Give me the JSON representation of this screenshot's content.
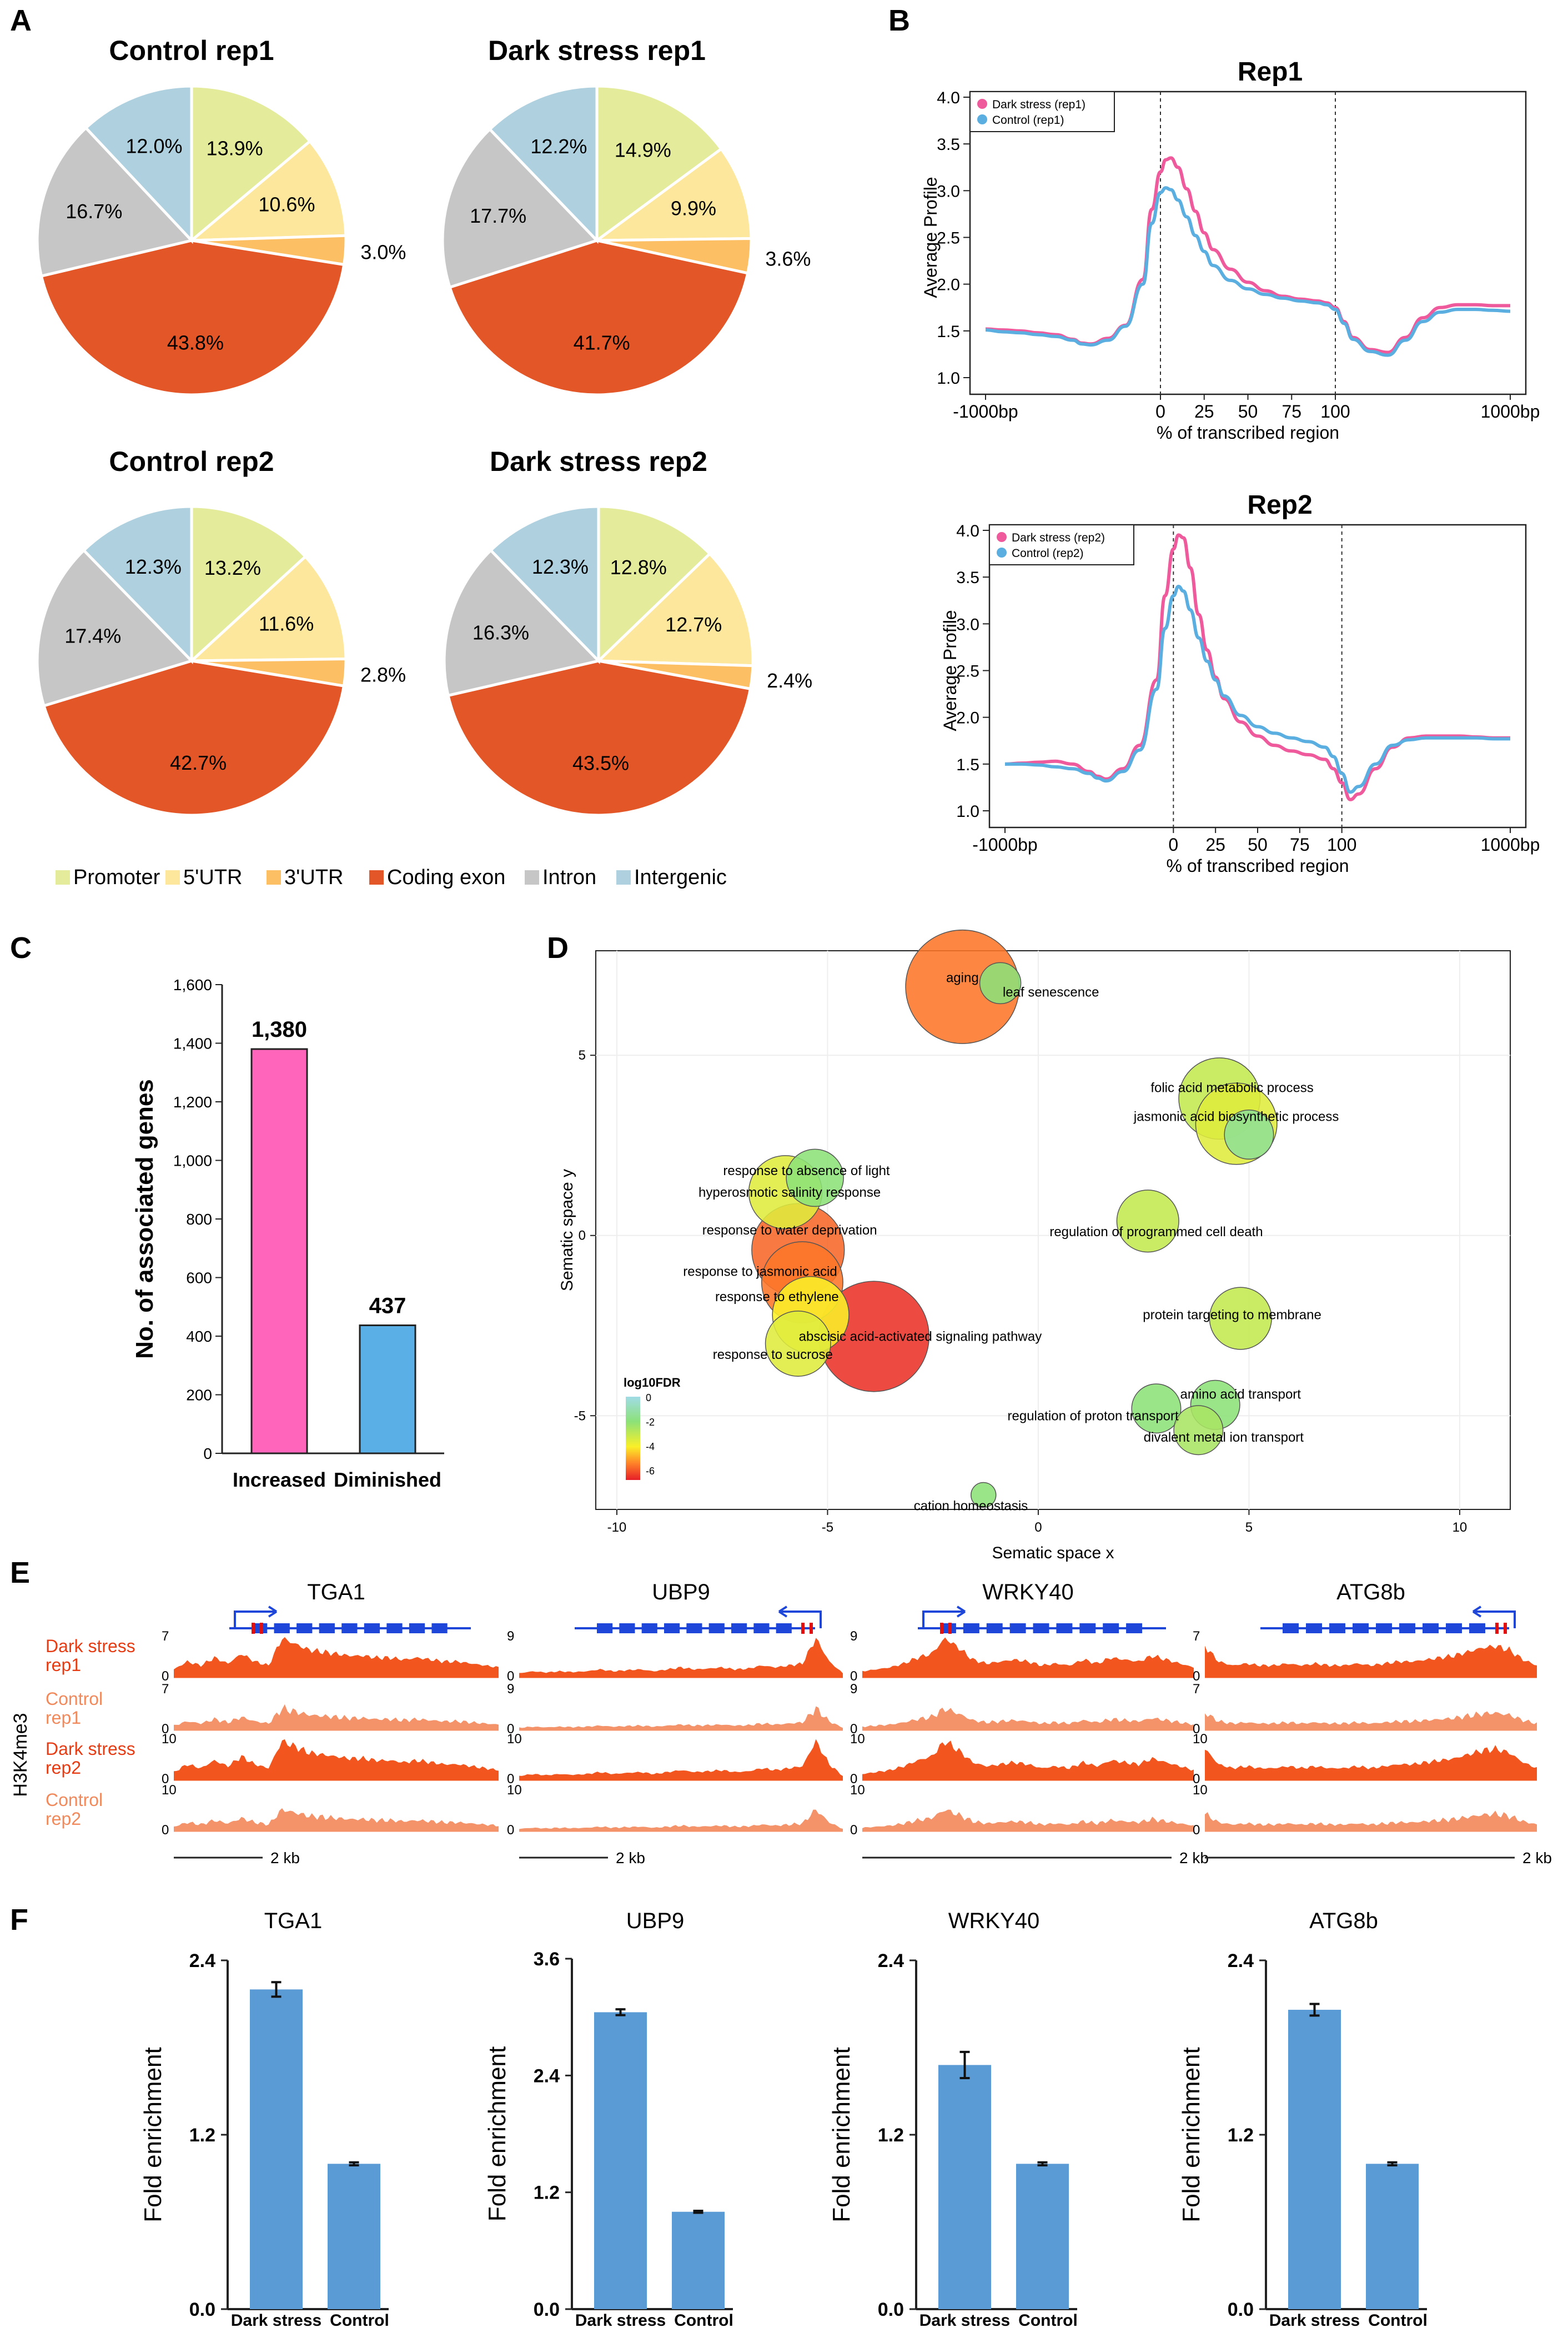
{
  "colors": {
    "promoter": "#e4ec9c",
    "utr5": "#fde79d",
    "utr3": "#fcbf63",
    "coding": "#e35627",
    "intron": "#c6c6c6",
    "intergenic": "#afd0df",
    "dark_line": "#ee5a9c",
    "control_line": "#5aaee0",
    "bar_increased": "#ff66bb",
    "bar_diminished": "#5aafe6",
    "track_dark": "#f2561e",
    "track_control": "#f4926a",
    "gene_blue": "#1e46d9",
    "label_dark": "#e63c14",
    "label_control": "#f08a5c",
    "bar_f": "#5b9bd5"
  },
  "panels": {
    "A": "A",
    "B": "B",
    "C": "C",
    "D": "D",
    "E": "E",
    "F": "F"
  },
  "chart_data": [
    {
      "id": "A1",
      "type": "pie",
      "title": "Control rep1",
      "labels": [
        "Promoter",
        "5'UTR",
        "3'UTR",
        "Coding exon",
        "Intron",
        "Intergenic"
      ],
      "values": [
        13.9,
        10.6,
        3.0,
        43.8,
        16.7,
        12.0
      ],
      "value_labels": [
        "13.9%",
        "10.6%",
        "3.0%",
        "43.8%",
        "16.7%",
        "12.0%"
      ]
    },
    {
      "id": "A2",
      "type": "pie",
      "title": "Dark stress rep1",
      "labels": [
        "Promoter",
        "5'UTR",
        "3'UTR",
        "Coding exon",
        "Intron",
        "Intergenic"
      ],
      "values": [
        14.9,
        9.9,
        3.6,
        41.7,
        17.7,
        12.2
      ],
      "value_labels": [
        "14.9%",
        "9.9%",
        "3.6%",
        "41.7%",
        "17.7%",
        "12.2%"
      ]
    },
    {
      "id": "A3",
      "type": "pie",
      "title": "Control rep2",
      "labels": [
        "Promoter",
        "5'UTR",
        "3'UTR",
        "Coding exon",
        "Intron",
        "Intergenic"
      ],
      "values": [
        13.2,
        11.6,
        2.8,
        42.7,
        17.4,
        12.3
      ],
      "value_labels": [
        "13.2%",
        "11.6%",
        "2.8%",
        "42.7%",
        "17.4%",
        "12.3%"
      ]
    },
    {
      "id": "A4",
      "type": "pie",
      "title": "Dark stress rep2",
      "labels": [
        "Promoter",
        "5'UTR",
        "3'UTR",
        "Coding exon",
        "Intron",
        "Intergenic"
      ],
      "values": [
        12.8,
        12.7,
        2.4,
        43.5,
        16.3,
        12.3
      ],
      "value_labels": [
        "12.8%",
        "12.7%",
        "2.4%",
        "43.5%",
        "16.3%",
        "12.3%"
      ],
      "legend": [
        "Promoter",
        "5'UTR",
        "3'UTR",
        "Coding exon",
        "Intron",
        "Intergenic"
      ]
    },
    {
      "id": "B1",
      "type": "line",
      "title": "Rep1",
      "xlabel": "% of transcribed region",
      "ylabel": "Average Profile",
      "x_ticks": [
        "-1000bp",
        "0",
        "25",
        "50",
        "75",
        "100",
        "1000bp"
      ],
      "y_ticks": [
        "1.0",
        "1.5",
        "2.0",
        "2.5",
        "3.0",
        "3.5",
        "4.0"
      ],
      "ylim": [
        1.0,
        4.0
      ],
      "series": [
        {
          "name": "Dark stress (rep1)",
          "x": [
            -100,
            -90,
            -80,
            -70,
            -60,
            -50,
            -45,
            -40,
            -30,
            -20,
            -10,
            -5,
            0,
            3,
            6,
            10,
            15,
            20,
            25,
            30,
            40,
            50,
            60,
            70,
            80,
            90,
            95,
            100,
            105,
            110,
            120,
            130,
            140,
            150,
            160,
            170,
            180,
            190,
            200
          ],
          "y": [
            1.52,
            1.51,
            1.5,
            1.48,
            1.46,
            1.41,
            1.37,
            1.36,
            1.42,
            1.56,
            2.05,
            2.8,
            3.2,
            3.33,
            3.35,
            3.25,
            3.02,
            2.78,
            2.55,
            2.37,
            2.16,
            2.02,
            1.93,
            1.87,
            1.84,
            1.82,
            1.8,
            1.75,
            1.6,
            1.43,
            1.3,
            1.27,
            1.43,
            1.64,
            1.75,
            1.78,
            1.78,
            1.77,
            1.77
          ]
        },
        {
          "name": "Control (rep1)",
          "x": [
            -100,
            -90,
            -80,
            -70,
            -60,
            -50,
            -45,
            -40,
            -30,
            -20,
            -10,
            -5,
            0,
            3,
            6,
            10,
            15,
            20,
            25,
            30,
            40,
            50,
            60,
            70,
            80,
            90,
            95,
            100,
            105,
            110,
            120,
            130,
            140,
            150,
            160,
            170,
            180,
            190,
            200
          ],
          "y": [
            1.51,
            1.49,
            1.48,
            1.46,
            1.44,
            1.4,
            1.36,
            1.35,
            1.4,
            1.55,
            2.0,
            2.65,
            2.98,
            3.03,
            3.01,
            2.9,
            2.72,
            2.52,
            2.35,
            2.2,
            2.04,
            1.95,
            1.89,
            1.85,
            1.82,
            1.8,
            1.78,
            1.73,
            1.58,
            1.41,
            1.28,
            1.24,
            1.4,
            1.6,
            1.7,
            1.73,
            1.73,
            1.72,
            1.71
          ]
        }
      ]
    },
    {
      "id": "B2",
      "type": "line",
      "title": "Rep2",
      "xlabel": "% of transcribed region",
      "ylabel": "Average Profile",
      "x_ticks": [
        "-1000bp",
        "0",
        "25",
        "50",
        "75",
        "100",
        "1000bp"
      ],
      "y_ticks": [
        "1.0",
        "1.5",
        "2.0",
        "2.5",
        "3.0",
        "3.5",
        "4.0"
      ],
      "ylim": [
        1.0,
        4.0
      ],
      "series": [
        {
          "name": "Dark stress (rep2)",
          "x": [
            -100,
            -90,
            -80,
            -70,
            -60,
            -50,
            -45,
            -40,
            -30,
            -20,
            -10,
            -5,
            0,
            3,
            6,
            10,
            15,
            20,
            25,
            30,
            40,
            50,
            60,
            70,
            80,
            90,
            95,
            100,
            105,
            110,
            120,
            130,
            140,
            150,
            160,
            170,
            180,
            190,
            200
          ],
          "y": [
            1.5,
            1.51,
            1.52,
            1.53,
            1.5,
            1.42,
            1.37,
            1.34,
            1.45,
            1.7,
            2.4,
            3.3,
            3.8,
            3.95,
            3.92,
            3.6,
            3.1,
            2.72,
            2.43,
            2.2,
            1.95,
            1.8,
            1.7,
            1.64,
            1.6,
            1.55,
            1.45,
            1.3,
            1.12,
            1.18,
            1.45,
            1.68,
            1.78,
            1.8,
            1.8,
            1.8,
            1.79,
            1.78,
            1.78
          ]
        },
        {
          "name": "Control (rep2)",
          "x": [
            -100,
            -90,
            -80,
            -70,
            -60,
            -50,
            -45,
            -40,
            -30,
            -20,
            -10,
            -5,
            0,
            3,
            6,
            10,
            15,
            20,
            25,
            30,
            40,
            50,
            60,
            70,
            80,
            90,
            95,
            100,
            105,
            110,
            120,
            130,
            140,
            150,
            160,
            170,
            180,
            190,
            200
          ],
          "y": [
            1.5,
            1.5,
            1.49,
            1.47,
            1.45,
            1.4,
            1.35,
            1.32,
            1.42,
            1.65,
            2.3,
            2.95,
            3.3,
            3.4,
            3.35,
            3.15,
            2.85,
            2.6,
            2.4,
            2.23,
            2.02,
            1.9,
            1.83,
            1.78,
            1.74,
            1.68,
            1.58,
            1.4,
            1.2,
            1.26,
            1.5,
            1.7,
            1.76,
            1.78,
            1.78,
            1.78,
            1.78,
            1.77,
            1.77
          ]
        }
      ]
    },
    {
      "id": "C",
      "type": "bar",
      "ylabel": "No. of associated genes",
      "categories": [
        "Increased",
        "Diminished"
      ],
      "values": [
        1380,
        437
      ],
      "value_labels": [
        "1,380",
        "437"
      ],
      "ylim": [
        0,
        1600
      ],
      "y_ticks": [
        {
          "v": 0,
          "t": "0"
        },
        {
          "v": 200,
          "t": "200"
        },
        {
          "v": 400,
          "t": "400"
        },
        {
          "v": 600,
          "t": "600"
        },
        {
          "v": 800,
          "t": "800"
        },
        {
          "v": 1000,
          "t": "1,000"
        },
        {
          "v": 1200,
          "t": "1,200"
        },
        {
          "v": 1400,
          "t": "1,400"
        },
        {
          "v": 1600,
          "t": "1,600"
        }
      ]
    },
    {
      "id": "D",
      "type": "scatter",
      "xlabel": "Sematic space x",
      "ylabel": "Sematic space y",
      "xlim": [
        -10.5,
        11.2
      ],
      "ylim": [
        -7.6,
        7.9
      ],
      "x_ticks": [
        {
          "v": -10,
          "t": "-10"
        },
        {
          "v": -5,
          "t": "-5"
        },
        {
          "v": 0,
          "t": "0"
        },
        {
          "v": 5,
          "t": "5"
        },
        {
          "v": 10,
          "t": "10"
        }
      ],
      "y_ticks": [
        {
          "v": -5,
          "t": "-5"
        },
        {
          "v": 0,
          "t": "0"
        },
        {
          "v": 5,
          "t": "5"
        }
      ],
      "legend_title": "log10FDR",
      "legend_ticks": [
        "0",
        "-2",
        "-4",
        "-6"
      ],
      "points": [
        {
          "label": "aging",
          "x": -1.8,
          "y": 6.9,
          "size": 6.5,
          "log10fdr": -5.2
        },
        {
          "label": "leaf senescence",
          "x": -0.9,
          "y": 7.0,
          "size": 2.0,
          "log10fdr": -2.0
        },
        {
          "label": "folic acid metabolic process",
          "x": 4.3,
          "y": 3.8,
          "size": 4.5,
          "log10fdr": -3.0
        },
        {
          "label": "jasmonic acid biosynthetic process",
          "x": 4.7,
          "y": 3.1,
          "size": 4.5,
          "log10fdr": -3.5
        },
        {
          "label": "",
          "x": 5.0,
          "y": 2.8,
          "size": 2.5,
          "log10fdr": -1.5
        },
        {
          "label": "response to absence of light",
          "x": -5.3,
          "y": 1.6,
          "size": 3.0,
          "log10fdr": -2.0
        },
        {
          "label": "hyperosmotic salinity response",
          "x": -6.0,
          "y": 1.2,
          "size": 4.0,
          "log10fdr": -3.5
        },
        {
          "label": "response to water deprivation",
          "x": -5.7,
          "y": -0.4,
          "size": 5.2,
          "log10fdr": -5.4
        },
        {
          "label": "regulation of programmed cell death",
          "x": 2.6,
          "y": 0.4,
          "size": 3.3,
          "log10fdr": -3.0
        },
        {
          "label": "response to jasmonic acid",
          "x": -5.6,
          "y": -1.3,
          "size": 4.5,
          "log10fdr": -5.2
        },
        {
          "label": "response to ethylene",
          "x": -5.4,
          "y": -2.2,
          "size": 4.2,
          "log10fdr": -4.0
        },
        {
          "label": "abscisic acid-activated signaling pathway",
          "x": -3.9,
          "y": -2.8,
          "size": 6.3,
          "log10fdr": -6.2
        },
        {
          "label": "response to sucrose",
          "x": -5.7,
          "y": -3.0,
          "size": 3.5,
          "log10fdr": -3.5
        },
        {
          "label": "protein targeting to membrane",
          "x": 4.8,
          "y": -2.3,
          "size": 3.3,
          "log10fdr": -3.0
        },
        {
          "label": "amino acid transport",
          "x": 4.2,
          "y": -4.7,
          "size": 2.5,
          "log10fdr": -2.0
        },
        {
          "label": "regulation of proton transport",
          "x": 2.8,
          "y": -4.8,
          "size": 2.5,
          "log10fdr": -2.0
        },
        {
          "label": "divalent metal ion transport",
          "x": 3.8,
          "y": -5.4,
          "size": 2.5,
          "log10fdr": -2.5
        },
        {
          "label": "cation homeostasis",
          "x": -1.3,
          "y": -7.2,
          "size": 1.0,
          "log10fdr": -2.0
        }
      ]
    },
    {
      "id": "E",
      "type": "genome_tracks",
      "side_label": "H3K4me3",
      "tracks": [
        {
          "label": "Dark stress rep1",
          "kind": "dark"
        },
        {
          "label": "Control rep1",
          "kind": "control"
        },
        {
          "label": "Dark stress rep2",
          "kind": "dark"
        },
        {
          "label": "Control rep2",
          "kind": "control"
        }
      ],
      "genes": [
        {
          "name": "TGA1",
          "strand": "+",
          "scale_values": [
            "7",
            "7",
            "10",
            "10"
          ],
          "zero": "0",
          "scale": "2 kb",
          "peak_pos": [
            0.28
          ],
          "profile": [
            0.2,
            0.4,
            0.3,
            0.5,
            0.35,
            0.6,
            0.4,
            0.3,
            1.0,
            0.85,
            0.7,
            0.65,
            0.6,
            0.55,
            0.55,
            0.5,
            0.5,
            0.45,
            0.5,
            0.45,
            0.4,
            0.4,
            0.35,
            0.3,
            0.25
          ]
        },
        {
          "name": "UBP9",
          "strand": "-",
          "scale_values": [
            "9",
            "9",
            "10",
            "10"
          ],
          "zero": "0",
          "scale": "2 kb",
          "peak_pos": [
            0.85
          ],
          "profile": [
            0.1,
            0.15,
            0.12,
            0.15,
            0.13,
            0.15,
            0.2,
            0.15,
            0.18,
            0.2,
            0.15,
            0.2,
            0.25,
            0.2,
            0.22,
            0.25,
            0.2,
            0.22,
            0.3,
            0.25,
            0.3,
            0.35,
            1.0,
            0.4,
            0.1
          ]
        },
        {
          "name": "WRKY40",
          "strand": "+",
          "scale_values": [
            "9",
            "9",
            "10",
            "10"
          ],
          "zero": "0",
          "scale": "2 kb",
          "peak_pos": [
            0.35
          ],
          "profile": [
            0.15,
            0.2,
            0.25,
            0.35,
            0.5,
            0.6,
            1.0,
            0.75,
            0.45,
            0.35,
            0.4,
            0.45,
            0.4,
            0.3,
            0.35,
            0.3,
            0.45,
            0.35,
            0.5,
            0.45,
            0.4,
            0.55,
            0.45,
            0.35,
            0.25
          ]
        },
        {
          "name": "ATG8b",
          "strand": "-",
          "scale_values": [
            "7",
            "7",
            "10",
            "10"
          ],
          "zero": "0",
          "scale": "2 kb",
          "peak_pos": [
            0.72
          ],
          "profile": [
            0.8,
            0.4,
            0.3,
            0.35,
            0.3,
            0.3,
            0.35,
            0.3,
            0.35,
            0.3,
            0.3,
            0.35,
            0.3,
            0.35,
            0.4,
            0.4,
            0.45,
            0.5,
            0.55,
            0.65,
            0.75,
            0.8,
            0.7,
            0.45,
            0.3
          ]
        }
      ]
    },
    {
      "id": "F",
      "type": "bar",
      "panels": [
        {
          "title": "TGA1",
          "categories": [
            "Dark stress",
            "Control"
          ],
          "values": [
            2.2,
            1.0
          ],
          "errors": [
            0.05,
            0.01
          ],
          "ylim": [
            0,
            2.4
          ],
          "y_ticks": [
            "0.0",
            "1.2",
            "2.4"
          ],
          "ylabel": "Fold enrichment"
        },
        {
          "title": "UBP9",
          "categories": [
            "Dark stress",
            "Control"
          ],
          "values": [
            3.05,
            1.0
          ],
          "errors": [
            0.03,
            0.01
          ],
          "ylim": [
            0,
            3.6
          ],
          "y_ticks": [
            "0.0",
            "1.2",
            "2.4",
            "3.6"
          ],
          "ylabel": "Fold enrichment"
        },
        {
          "title": "WRKY40",
          "categories": [
            "Dark stress",
            "Control"
          ],
          "values": [
            1.68,
            1.0
          ],
          "errors": [
            0.09,
            0.01
          ],
          "ylim": [
            0,
            2.4
          ],
          "y_ticks": [
            "0.0",
            "1.2",
            "2.4"
          ],
          "ylabel": "Fold enrichment"
        },
        {
          "title": "ATG8b",
          "categories": [
            "Dark stress",
            "Control"
          ],
          "values": [
            2.06,
            1.0
          ],
          "errors": [
            0.04,
            0.01
          ],
          "ylim": [
            0,
            2.4
          ],
          "y_ticks": [
            "0.0",
            "1.2",
            "2.4"
          ],
          "ylabel": "Fold enrichment"
        }
      ]
    }
  ]
}
